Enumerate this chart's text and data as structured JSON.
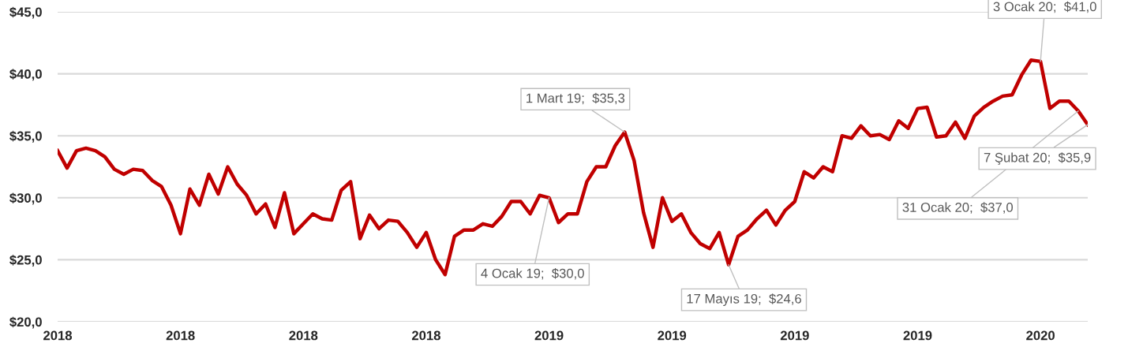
{
  "chart_data": {
    "type": "line",
    "x": [
      "2018-01-05",
      "2018-01-12",
      "2018-01-19",
      "2018-01-26",
      "2018-02-02",
      "2018-02-09",
      "2018-02-16",
      "2018-02-23",
      "2018-03-02",
      "2018-03-09",
      "2018-03-16",
      "2018-03-23",
      "2018-03-30",
      "2018-04-06",
      "2018-04-13",
      "2018-04-20",
      "2018-04-27",
      "2018-05-04",
      "2018-05-11",
      "2018-05-18",
      "2018-05-25",
      "2018-06-01",
      "2018-06-08",
      "2018-06-15",
      "2018-06-22",
      "2018-06-29",
      "2018-07-06",
      "2018-07-13",
      "2018-07-20",
      "2018-07-27",
      "2018-08-03",
      "2018-08-10",
      "2018-08-17",
      "2018-08-24",
      "2018-08-31",
      "2018-09-07",
      "2018-09-14",
      "2018-09-21",
      "2018-09-28",
      "2018-10-05",
      "2018-10-12",
      "2018-10-19",
      "2018-10-26",
      "2018-11-02",
      "2018-11-09",
      "2018-11-16",
      "2018-11-23",
      "2018-11-30",
      "2018-12-07",
      "2018-12-14",
      "2018-12-21",
      "2018-12-28",
      "2019-01-04",
      "2019-01-11",
      "2019-01-18",
      "2019-01-25",
      "2019-02-01",
      "2019-02-08",
      "2019-02-15",
      "2019-02-22",
      "2019-03-01",
      "2019-03-08",
      "2019-03-15",
      "2019-03-22",
      "2019-03-29",
      "2019-04-05",
      "2019-04-12",
      "2019-04-19",
      "2019-04-26",
      "2019-05-03",
      "2019-05-10",
      "2019-05-17",
      "2019-05-24",
      "2019-05-31",
      "2019-06-07",
      "2019-06-14",
      "2019-06-21",
      "2019-06-28",
      "2019-07-05",
      "2019-07-12",
      "2019-07-19",
      "2019-07-26",
      "2019-08-02",
      "2019-08-09",
      "2019-08-16",
      "2019-08-23",
      "2019-08-30",
      "2019-09-06",
      "2019-09-13",
      "2019-09-20",
      "2019-09-27",
      "2019-10-04",
      "2019-10-11",
      "2019-10-18",
      "2019-10-25",
      "2019-11-01",
      "2019-11-08",
      "2019-11-15",
      "2019-11-22",
      "2019-11-29",
      "2019-12-06",
      "2019-12-13",
      "2019-12-20",
      "2019-12-27",
      "2020-01-03",
      "2020-01-10",
      "2020-01-17",
      "2020-01-24",
      "2020-01-31",
      "2020-02-07"
    ],
    "series": [
      {
        "color": "#c00000",
        "values": [
          33.8,
          32.4,
          33.8,
          34.0,
          33.8,
          33.3,
          32.3,
          31.9,
          32.3,
          32.2,
          31.4,
          30.9,
          29.4,
          27.1,
          30.7,
          29.4,
          31.9,
          30.3,
          32.5,
          31.1,
          30.2,
          28.7,
          29.5,
          27.6,
          30.4,
          27.1,
          27.9,
          28.7,
          28.3,
          28.2,
          30.6,
          31.3,
          26.7,
          28.6,
          27.5,
          28.2,
          28.1,
          27.2,
          26.0,
          27.2,
          25.0,
          23.8,
          26.9,
          27.4,
          27.4,
          27.9,
          27.7,
          28.5,
          29.7,
          29.7,
          28.7,
          30.2,
          30.0,
          28.0,
          28.7,
          28.7,
          31.3,
          32.5,
          32.5,
          34.2,
          35.3,
          33.0,
          28.8,
          26.0,
          30.0,
          28.1,
          28.7,
          27.2,
          26.3,
          25.9,
          27.2,
          24.6,
          26.9,
          27.4,
          28.3,
          29.0,
          27.8,
          29.0,
          29.7,
          32.1,
          31.6,
          32.5,
          32.1,
          35.0,
          34.8,
          35.8,
          35.0,
          35.1,
          34.7,
          36.2,
          35.6,
          37.2,
          37.3,
          34.9,
          35.0,
          36.1,
          34.8,
          36.6,
          37.3,
          37.8,
          38.2,
          38.3,
          39.9,
          41.1,
          41.0,
          37.2,
          37.8,
          37.8,
          37.0,
          35.9
        ]
      }
    ],
    "xlim": [
      "2018-01-05",
      "2020-02-07"
    ],
    "xticks": [
      {
        "value": "2018-01-05",
        "label": "2018"
      },
      {
        "value": "2018-04-06",
        "label": "2018"
      },
      {
        "value": "2018-07-06",
        "label": "2018"
      },
      {
        "value": "2018-10-05",
        "label": "2018"
      },
      {
        "value": "2019-01-04",
        "label": "2019"
      },
      {
        "value": "2019-04-05",
        "label": "2019"
      },
      {
        "value": "2019-07-05",
        "label": "2019"
      },
      {
        "value": "2019-10-04",
        "label": "2019"
      },
      {
        "value": "2020-01-03",
        "label": "2020"
      }
    ],
    "ylim": [
      20,
      45
    ],
    "yticks": [
      {
        "value": 20,
        "label": "$20,0"
      },
      {
        "value": 25,
        "label": "$25,0"
      },
      {
        "value": 30,
        "label": "$30,0"
      },
      {
        "value": 35,
        "label": "$35,0"
      },
      {
        "value": 40,
        "label": "$40,0"
      },
      {
        "value": 45,
        "label": "$45,0"
      }
    ],
    "grid": "y",
    "line_style": "solid",
    "annotations": [
      {
        "text": "4 Ocak 19;  $30,0",
        "x": "2019-01-04",
        "y": 30.0
      },
      {
        "text": "1 Mart 19;  $35,3",
        "x": "2019-03-01",
        "y": 35.3
      },
      {
        "text": "17 Mayıs 19;  $24,6",
        "x": "2019-05-17",
        "y": 24.6
      },
      {
        "text": "3 Ocak 20;  $41,0",
        "x": "2020-01-03",
        "y": 41.0
      },
      {
        "text": "31 Ocak 20;  $37,0",
        "x": "2020-01-31",
        "y": 37.0
      },
      {
        "text": "7 Şubat 20;  $35,9",
        "x": "2020-02-07",
        "y": 35.9
      }
    ]
  }
}
